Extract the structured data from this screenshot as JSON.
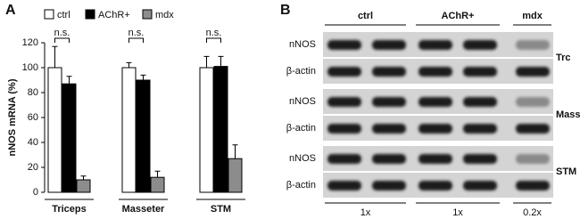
{
  "chart_data": {
    "type": "bar",
    "panel_label": "A",
    "y_label": "nNOS mRNA (%)",
    "categories": [
      "Triceps",
      "Masseter",
      "STM"
    ],
    "series": [
      {
        "name": "ctrl",
        "color": "#ffffff",
        "values": [
          100,
          100,
          100
        ],
        "errors": [
          17,
          4,
          9
        ]
      },
      {
        "name": "AChR+",
        "color": "#000000",
        "values": [
          87,
          90,
          101
        ],
        "errors": [
          6,
          4,
          8
        ]
      },
      {
        "name": "mdx",
        "color": "#8c8c8c",
        "values": [
          10,
          12,
          27
        ],
        "errors": [
          3,
          5,
          11
        ]
      }
    ],
    "ylim": [
      0,
      120
    ],
    "yticks": [
      0,
      20,
      40,
      60,
      80,
      100,
      120
    ],
    "annotations": [
      "n.s.",
      "n.s.",
      "n.s."
    ]
  },
  "blot": {
    "panel_label": "B",
    "groups": [
      "ctrl",
      "AChR+",
      "mdx"
    ],
    "tissues": [
      {
        "name": "Trc",
        "rows": [
          "nNOS",
          "β-actin"
        ]
      },
      {
        "name": "Mass",
        "rows": [
          "nNOS",
          "β-actin"
        ]
      },
      {
        "name": "STM",
        "rows": [
          "nNOS",
          "β-actin"
        ]
      }
    ],
    "fold_labels": [
      "1x",
      "1x",
      "0.2x"
    ]
  }
}
